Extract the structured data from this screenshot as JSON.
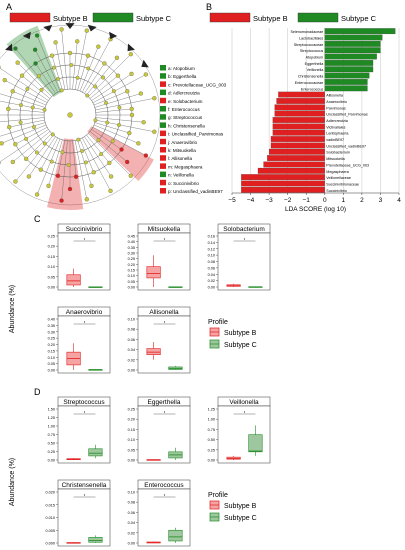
{
  "panels": {
    "a": {
      "letter": "A"
    },
    "b": {
      "letter": "B"
    },
    "c": {
      "letter": "C"
    },
    "d": {
      "letter": "D"
    }
  },
  "legend_top": {
    "items": [
      {
        "label": "Subtype B",
        "color": "#e02020"
      },
      {
        "label": "Subtype C",
        "color": "#1f8a24"
      }
    ]
  },
  "cladogram": {
    "legend": [
      {
        "key": "a",
        "label": "a: Atopobium",
        "color": "#1f8a24"
      },
      {
        "key": "b",
        "label": "b: Eggerthella",
        "color": "#1f8a24"
      },
      {
        "key": "c",
        "label": "c: Prevotellaceae_UCG_003",
        "color": "#e02020"
      },
      {
        "key": "d",
        "label": "d: Adlercreutzia",
        "color": "#1f8a24"
      },
      {
        "key": "e",
        "label": "e: Solobacterium",
        "color": "#e02020"
      },
      {
        "key": "f",
        "label": "f: Enterococcus",
        "color": "#1f8a24"
      },
      {
        "key": "g",
        "label": "g: Streptococcus",
        "color": "#1f8a24"
      },
      {
        "key": "h",
        "label": "h: Christensenella",
        "color": "#1f8a24"
      },
      {
        "key": "i",
        "label": "i: Unclassified_Parvimonas",
        "color": "#e02020"
      },
      {
        "key": "j",
        "label": "j: Anaerovibrio",
        "color": "#e02020"
      },
      {
        "key": "k",
        "label": "k: Mitsuokella",
        "color": "#e02020"
      },
      {
        "key": "l",
        "label": "l: Allisonella",
        "color": "#e02020"
      },
      {
        "key": "m",
        "label": "m: Megasphaera",
        "color": "#e02020"
      },
      {
        "key": "n",
        "label": "n: Veillonella",
        "color": "#1f8a24"
      },
      {
        "key": "o",
        "label": "o: Succinivibrio",
        "color": "#e02020"
      },
      {
        "key": "p",
        "label": "p: Unclassified_vadinBE97",
        "color": "#e02020"
      }
    ]
  },
  "chart_data": [
    {
      "type": "bar",
      "orientation": "horizontal",
      "xlabel": "LDA SCORE (log 10)",
      "xlim": [
        -5,
        4
      ],
      "xticks": [
        -5,
        -4,
        -3,
        -2,
        -1,
        0,
        1,
        2,
        3,
        4
      ],
      "grid": true,
      "categories": [
        "Selenomonadaceae",
        "Lactobacillales",
        "Streptococcaceae",
        "Streptococcus",
        "Atopobium",
        "Eggerthella",
        "Veillonella",
        "Christensenella",
        "Enterococcaceae",
        "Enterococcus",
        "Allisonella",
        "Anaerovibrio",
        "Parvimonas",
        "Unclassified_Parvimonas",
        "Adlercreutzia",
        "Victivallales",
        "Lentisphaeria",
        "vadinBE97",
        "Unclassified_vadinBE97",
        "Solobacterium",
        "Mitsuokella",
        "Prevotellaceae_UCG_003",
        "Megasphaera",
        "Veillonellaceae",
        "Succinivibrionaceae",
        "Succinivibrio"
      ],
      "groups": [
        "C",
        "C",
        "C",
        "C",
        "C",
        "C",
        "C",
        "C",
        "C",
        "C",
        "B",
        "B",
        "B",
        "B",
        "B",
        "B",
        "B",
        "B",
        "B",
        "B",
        "B",
        "B",
        "B",
        "B",
        "B",
        "B"
      ],
      "values": [
        3.8,
        3.1,
        3.0,
        3.0,
        2.8,
        2.6,
        2.6,
        2.4,
        2.3,
        2.3,
        -2.5,
        -2.6,
        -2.7,
        -2.7,
        -2.8,
        -2.8,
        -2.8,
        -2.9,
        -2.9,
        -3.0,
        -3.1,
        -3.3,
        -3.6,
        -4.5,
        -4.5,
        -4.5
      ]
    },
    {
      "type": "box",
      "panel": "C",
      "ylabel": "Abundance (%)",
      "legend_title": "Profile",
      "groups": [
        "Subtype B",
        "Subtype C"
      ],
      "subplots": [
        {
          "title": "Succinivibrio",
          "ylim": [
            0,
            0.25
          ],
          "yticks": [
            "0.00",
            "0.05",
            "0.10",
            "0.15",
            "0.20",
            "0.25"
          ],
          "boxes": [
            {
              "group": "Subtype B",
              "min": 0.0,
              "q1": 0.01,
              "median": 0.03,
              "q3": 0.06,
              "max": 0.09
            },
            {
              "group": "Subtype C",
              "min": 0.0,
              "q1": 0.0,
              "median": 0.0,
              "q3": 0.001,
              "max": 0.002
            }
          ]
        },
        {
          "title": "Mitsuokella",
          "ylim": [
            0,
            0.45
          ],
          "yticks": [
            "0.00",
            "0.05",
            "0.10",
            "0.15",
            "0.20",
            "0.25",
            "0.30",
            "0.35",
            "0.40",
            "0.45"
          ],
          "boxes": [
            {
              "group": "Subtype B",
              "min": 0.0,
              "q1": 0.08,
              "median": 0.12,
              "q3": 0.18,
              "max": 0.28
            },
            {
              "group": "Subtype C",
              "min": 0.0,
              "q1": 0.0,
              "median": 0.0,
              "q3": 0.002,
              "max": 0.004
            }
          ]
        },
        {
          "title": "Solobacterium",
          "ylim": [
            0,
            0.16
          ],
          "yticks": [
            "0.00",
            "0.02",
            "0.04",
            "0.06",
            "0.08",
            "0.10",
            "0.12",
            "0.14",
            "0.16"
          ],
          "boxes": [
            {
              "group": "Subtype B",
              "min": 0.0,
              "q1": 0.002,
              "median": 0.004,
              "q3": 0.007,
              "max": 0.01
            },
            {
              "group": "Subtype C",
              "min": 0.0,
              "q1": 0.0,
              "median": 0.0,
              "q3": 0.001,
              "max": 0.002
            }
          ]
        },
        {
          "title": "Anaerovibrio",
          "ylim": [
            0,
            0.4
          ],
          "yticks": [
            "0.00",
            "0.05",
            "0.10",
            "0.15",
            "0.20",
            "0.25",
            "0.30",
            "0.35",
            "0.40"
          ],
          "boxes": [
            {
              "group": "Subtype B",
              "min": 0.0,
              "q1": 0.04,
              "median": 0.09,
              "q3": 0.14,
              "max": 0.21
            },
            {
              "group": "Subtype C",
              "min": 0.0,
              "q1": 0.0,
              "median": 0.002,
              "q3": 0.004,
              "max": 0.006
            }
          ]
        },
        {
          "title": "Allisonella",
          "ylim": [
            0,
            0.1
          ],
          "yticks": [
            "0.00",
            "0.02",
            "0.04",
            "0.06",
            "0.08",
            "0.10"
          ],
          "boxes": [
            {
              "group": "Subtype B",
              "min": 0.02,
              "q1": 0.03,
              "median": 0.035,
              "q3": 0.042,
              "max": 0.055
            },
            {
              "group": "Subtype C",
              "min": 0.0,
              "q1": 0.001,
              "median": 0.003,
              "q3": 0.006,
              "max": 0.008
            }
          ]
        }
      ]
    },
    {
      "type": "box",
      "panel": "D",
      "ylabel": "Abundance (%)",
      "legend_title": "Profile",
      "groups": [
        "Subtype B",
        "Subtype C"
      ],
      "subplots": [
        {
          "title": "Streptococcus",
          "ylim": [
            0,
            1.5
          ],
          "yticks": [
            "0.00",
            "0.25",
            "0.50",
            "0.75",
            "1.00",
            "1.25",
            "1.50"
          ],
          "boxes": [
            {
              "group": "Subtype B",
              "min": 0.0,
              "q1": 0.01,
              "median": 0.02,
              "q3": 0.04,
              "max": 0.06
            },
            {
              "group": "Subtype C",
              "min": 0.05,
              "q1": 0.12,
              "median": 0.2,
              "q3": 0.33,
              "max": 0.45
            }
          ]
        },
        {
          "title": "Eggerthella",
          "ylim": [
            0,
            0.25
          ],
          "yticks": [
            "0.00",
            "0.05",
            "0.10",
            "0.15",
            "0.20",
            "0.25"
          ],
          "boxes": [
            {
              "group": "Subtype B",
              "min": 0.0,
              "q1": 0.0,
              "median": 0.001,
              "q3": 0.002,
              "max": 0.003
            },
            {
              "group": "Subtype C",
              "min": 0.0,
              "q1": 0.01,
              "median": 0.025,
              "q3": 0.04,
              "max": 0.06
            }
          ]
        },
        {
          "title": "Veillonella",
          "ylim": [
            0,
            1.25
          ],
          "yticks": [
            "0.00",
            "0.25",
            "0.50",
            "0.75",
            "1.00",
            "1.25"
          ],
          "boxes": [
            {
              "group": "Subtype B",
              "min": 0.0,
              "q1": 0.02,
              "median": 0.04,
              "q3": 0.07,
              "max": 0.1
            },
            {
              "group": "Subtype C",
              "min": 0.1,
              "q1": 0.2,
              "median": 0.22,
              "q3": 0.62,
              "max": 0.85
            }
          ]
        },
        {
          "title": "Christensenella",
          "ylim": [
            0,
            0.02
          ],
          "yticks": [
            "0.000",
            "0.005",
            "0.010",
            "0.015",
            "0.020"
          ],
          "boxes": [
            {
              "group": "Subtype B",
              "min": 0.0,
              "q1": 0.0,
              "median": 0.0,
              "q3": 0.0002,
              "max": 0.0004
            },
            {
              "group": "Subtype C",
              "min": 0.0,
              "q1": 0.0003,
              "median": 0.001,
              "q3": 0.0022,
              "max": 0.003
            }
          ]
        },
        {
          "title": "Enterococcus",
          "ylim": [
            0,
            0.1
          ],
          "yticks": [
            "0.00",
            "0.02",
            "0.04",
            "0.06",
            "0.08",
            "0.10"
          ],
          "boxes": [
            {
              "group": "Subtype B",
              "min": 0.0,
              "q1": 0.0,
              "median": 0.001,
              "q3": 0.002,
              "max": 0.003
            },
            {
              "group": "Subtype C",
              "min": 0.0,
              "q1": 0.004,
              "median": 0.012,
              "q3": 0.025,
              "max": 0.03
            }
          ]
        }
      ]
    }
  ]
}
